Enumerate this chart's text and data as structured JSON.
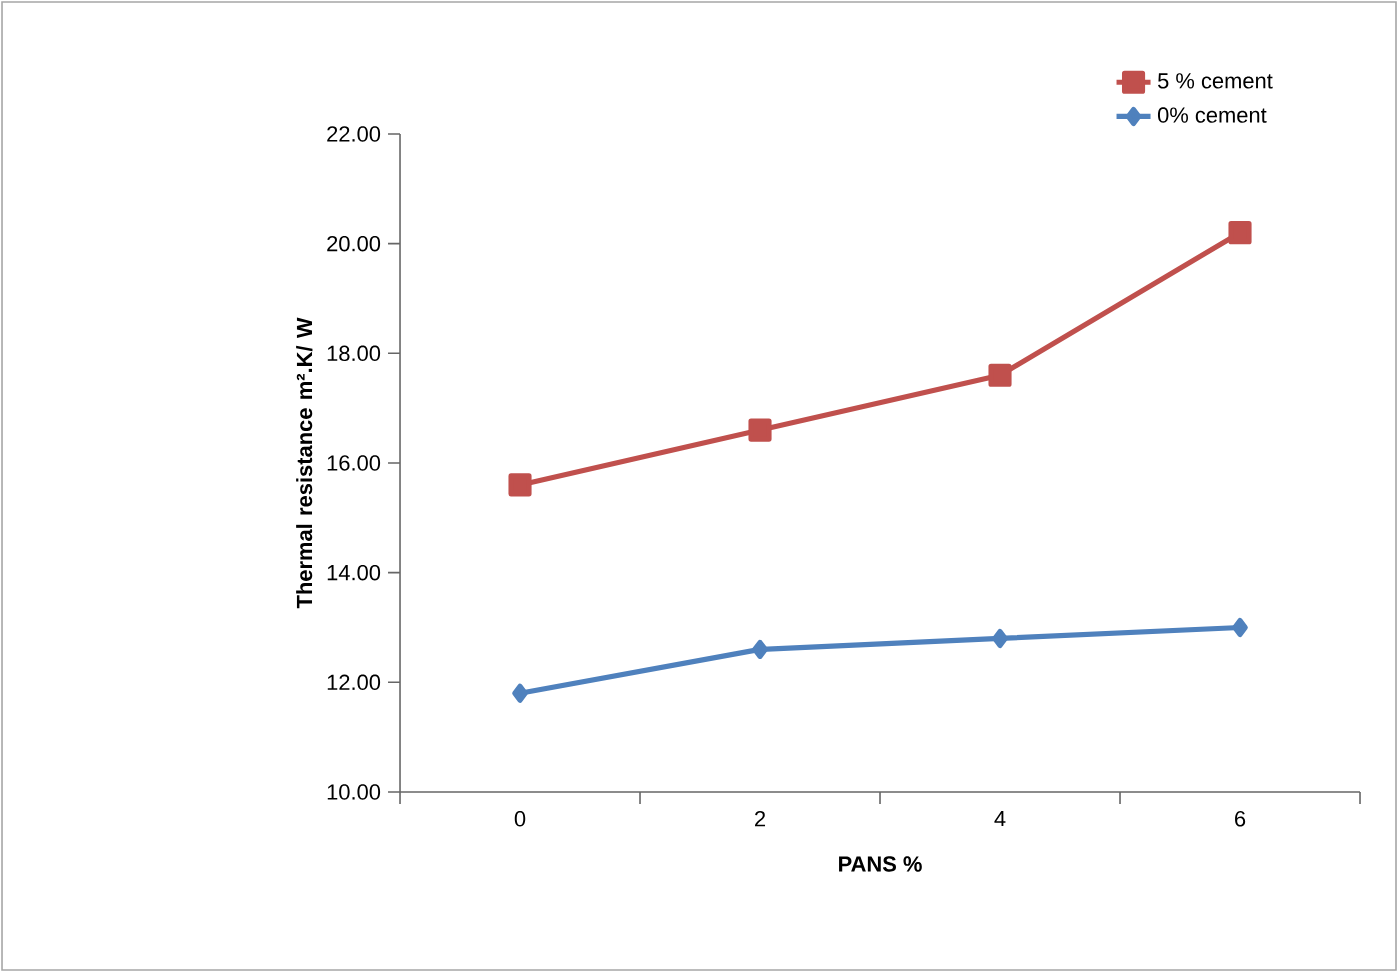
{
  "chart_data": {
    "type": "line",
    "xlabel": "PANS %",
    "ylabel": "Thermal resistance m².K/ W",
    "categories": [
      "0",
      "2",
      "4",
      "6"
    ],
    "series": [
      {
        "name": "5 % cement",
        "color": "#c0504d",
        "marker": "square",
        "values": [
          15.6,
          16.6,
          17.6,
          20.2
        ]
      },
      {
        "name": "0% cement",
        "color": "#4f81bd",
        "marker": "diamond",
        "values": [
          11.8,
          12.6,
          12.8,
          13.0
        ]
      }
    ],
    "ylim": [
      10,
      22
    ],
    "yticks": [
      {
        "value": 10,
        "label": "10.00"
      },
      {
        "value": 12,
        "label": "12.00"
      },
      {
        "value": 14,
        "label": "14.00"
      },
      {
        "value": 16,
        "label": "16.00"
      },
      {
        "value": 18,
        "label": "18.00"
      },
      {
        "value": 20,
        "label": "20.00"
      },
      {
        "value": 22,
        "label": "22.00"
      }
    ],
    "legend": "top right",
    "grid": false,
    "line_style": "solid"
  }
}
